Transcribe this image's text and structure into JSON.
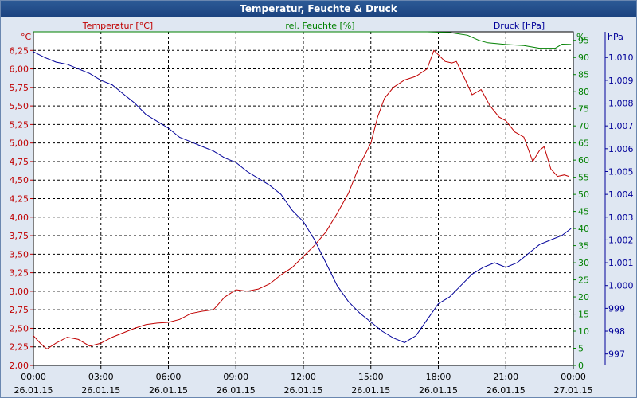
{
  "window": {
    "title": "Temperatur, Feuchte & Druck"
  },
  "colors": {
    "temperature": "#c00000",
    "humidity": "#008000",
    "pressure": "#000099",
    "grid": "#000000",
    "plot_bg": "#ffffff",
    "text": "#000000"
  },
  "chart_data": {
    "type": "line",
    "title": "Temperatur, Feuchte & Druck",
    "grid": true,
    "x_ticks": [
      {
        "time": "00:00",
        "date": "26.01.15"
      },
      {
        "time": "03:00",
        "date": "26.01.15"
      },
      {
        "time": "06:00",
        "date": "26.01.15"
      },
      {
        "time": "09:00",
        "date": "26.01.15"
      },
      {
        "time": "12:00",
        "date": "26.01.15"
      },
      {
        "time": "15:00",
        "date": "26.01.15"
      },
      {
        "time": "18:00",
        "date": "26.01.15"
      },
      {
        "time": "21:00",
        "date": "26.01.15"
      },
      {
        "time": "00:00",
        "date": "27.01.15"
      }
    ],
    "x_hours": [
      0,
      24
    ],
    "axes": {
      "temperature": {
        "label": "Temperatur [°C]",
        "unit": "°C",
        "range": [
          2.0,
          6.5
        ],
        "ticks": [
          "2,00",
          "2,25",
          "2,50",
          "2,75",
          "3,00",
          "3,25",
          "3,50",
          "3,75",
          "4,00",
          "4,25",
          "4,50",
          "4,75",
          "5,00",
          "5,25",
          "5,50",
          "5,75",
          "6,00",
          "6,25"
        ]
      },
      "humidity": {
        "label": "rel. Feuchte [%]",
        "unit": "%",
        "range": [
          0,
          97.5
        ],
        "ticks": [
          "0",
          "5",
          "10",
          "15",
          "20",
          "25",
          "30",
          "35",
          "40",
          "45",
          "50",
          "55",
          "60",
          "65",
          "70",
          "75",
          "80",
          "85",
          "90",
          "95"
        ]
      },
      "pressure": {
        "label": "Druck [hPa]",
        "unit": "hPa",
        "range": [
          996.5,
          1011.125
        ],
        "ticks": [
          "997",
          "998",
          "999",
          "1.000",
          "1.001",
          "1.002",
          "1.003",
          "1.004",
          "1.005",
          "1.006",
          "1.007",
          "1.008",
          "1.009",
          "1.010"
        ]
      }
    },
    "series": [
      {
        "name": "Temperatur [°C]",
        "axis": "temperature",
        "points": [
          [
            0,
            2.4
          ],
          [
            0.3,
            2.3
          ],
          [
            0.6,
            2.22
          ],
          [
            1,
            2.3
          ],
          [
            1.5,
            2.38
          ],
          [
            2,
            2.35
          ],
          [
            2.5,
            2.26
          ],
          [
            3,
            2.3
          ],
          [
            3.5,
            2.38
          ],
          [
            4,
            2.44
          ],
          [
            4.5,
            2.5
          ],
          [
            5,
            2.55
          ],
          [
            5.5,
            2.57
          ],
          [
            6,
            2.58
          ],
          [
            6.5,
            2.62
          ],
          [
            7,
            2.7
          ],
          [
            7.5,
            2.73
          ],
          [
            8,
            2.75
          ],
          [
            8.5,
            2.92
          ],
          [
            9,
            3.02
          ],
          [
            9.5,
            3.0
          ],
          [
            10,
            3.03
          ],
          [
            10.5,
            3.1
          ],
          [
            11,
            3.22
          ],
          [
            11.5,
            3.32
          ],
          [
            12,
            3.47
          ],
          [
            12.5,
            3.62
          ],
          [
            13,
            3.8
          ],
          [
            13.5,
            4.05
          ],
          [
            14,
            4.32
          ],
          [
            14.5,
            4.7
          ],
          [
            15,
            5.0
          ],
          [
            15.3,
            5.35
          ],
          [
            15.6,
            5.6
          ],
          [
            16,
            5.75
          ],
          [
            16.5,
            5.85
          ],
          [
            17,
            5.9
          ],
          [
            17.5,
            6.0
          ],
          [
            17.8,
            6.25
          ],
          [
            18.3,
            6.1
          ],
          [
            18.6,
            6.08
          ],
          [
            18.8,
            6.1
          ],
          [
            19.2,
            5.85
          ],
          [
            19.5,
            5.65
          ],
          [
            19.9,
            5.72
          ],
          [
            20.3,
            5.5
          ],
          [
            20.7,
            5.35
          ],
          [
            21,
            5.3
          ],
          [
            21.4,
            5.15
          ],
          [
            21.8,
            5.08
          ],
          [
            22.2,
            4.75
          ],
          [
            22.5,
            4.9
          ],
          [
            22.7,
            4.95
          ],
          [
            23,
            4.65
          ],
          [
            23.3,
            4.55
          ],
          [
            23.6,
            4.57
          ],
          [
            23.8,
            4.55
          ]
        ]
      },
      {
        "name": "rel. Feuchte [%]",
        "axis": "humidity",
        "points": [
          [
            0,
            97.5
          ],
          [
            17.5,
            97.5
          ],
          [
            18.5,
            97.3
          ],
          [
            19.3,
            96.5
          ],
          [
            19.8,
            95
          ],
          [
            20.2,
            94.3
          ],
          [
            21,
            93.8
          ],
          [
            21.8,
            93.5
          ],
          [
            22.5,
            92.7
          ],
          [
            23.2,
            92.7
          ],
          [
            23.5,
            93.9
          ],
          [
            23.9,
            93.8
          ]
        ]
      },
      {
        "name": "Druck [hPa]",
        "axis": "pressure",
        "points": [
          [
            0,
            1010.25
          ],
          [
            0.5,
            1010.0
          ],
          [
            1,
            1009.8
          ],
          [
            1.5,
            1009.7
          ],
          [
            2,
            1009.5
          ],
          [
            2.5,
            1009.3
          ],
          [
            3,
            1009.0
          ],
          [
            3.5,
            1008.8
          ],
          [
            4,
            1008.4
          ],
          [
            4.5,
            1008.0
          ],
          [
            5,
            1007.5
          ],
          [
            5.5,
            1007.2
          ],
          [
            6,
            1006.9
          ],
          [
            6.5,
            1006.5
          ],
          [
            7,
            1006.3
          ],
          [
            7.5,
            1006.1
          ],
          [
            8,
            1005.9
          ],
          [
            8.5,
            1005.6
          ],
          [
            9,
            1005.4
          ],
          [
            9.5,
            1005.0
          ],
          [
            10,
            1004.7
          ],
          [
            10.5,
            1004.4
          ],
          [
            11,
            1004.0
          ],
          [
            11.5,
            1003.3
          ],
          [
            12,
            1002.8
          ],
          [
            12.5,
            1002.0
          ],
          [
            13,
            1001.0
          ],
          [
            13.5,
            1000.0
          ],
          [
            14,
            999.3
          ],
          [
            14.5,
            998.8
          ],
          [
            15,
            998.4
          ],
          [
            15.5,
            998.0
          ],
          [
            16,
            997.7
          ],
          [
            16.5,
            997.5
          ],
          [
            17,
            997.8
          ],
          [
            17.5,
            998.5
          ],
          [
            18,
            999.2
          ],
          [
            18.5,
            999.5
          ],
          [
            19,
            1000.0
          ],
          [
            19.5,
            1000.5
          ],
          [
            20,
            1000.8
          ],
          [
            20.5,
            1001.0
          ],
          [
            21,
            1000.8
          ],
          [
            21.5,
            1001.0
          ],
          [
            22,
            1001.4
          ],
          [
            22.5,
            1001.8
          ],
          [
            23,
            1002.0
          ],
          [
            23.5,
            1002.2
          ],
          [
            23.9,
            1002.5
          ]
        ]
      }
    ]
  }
}
